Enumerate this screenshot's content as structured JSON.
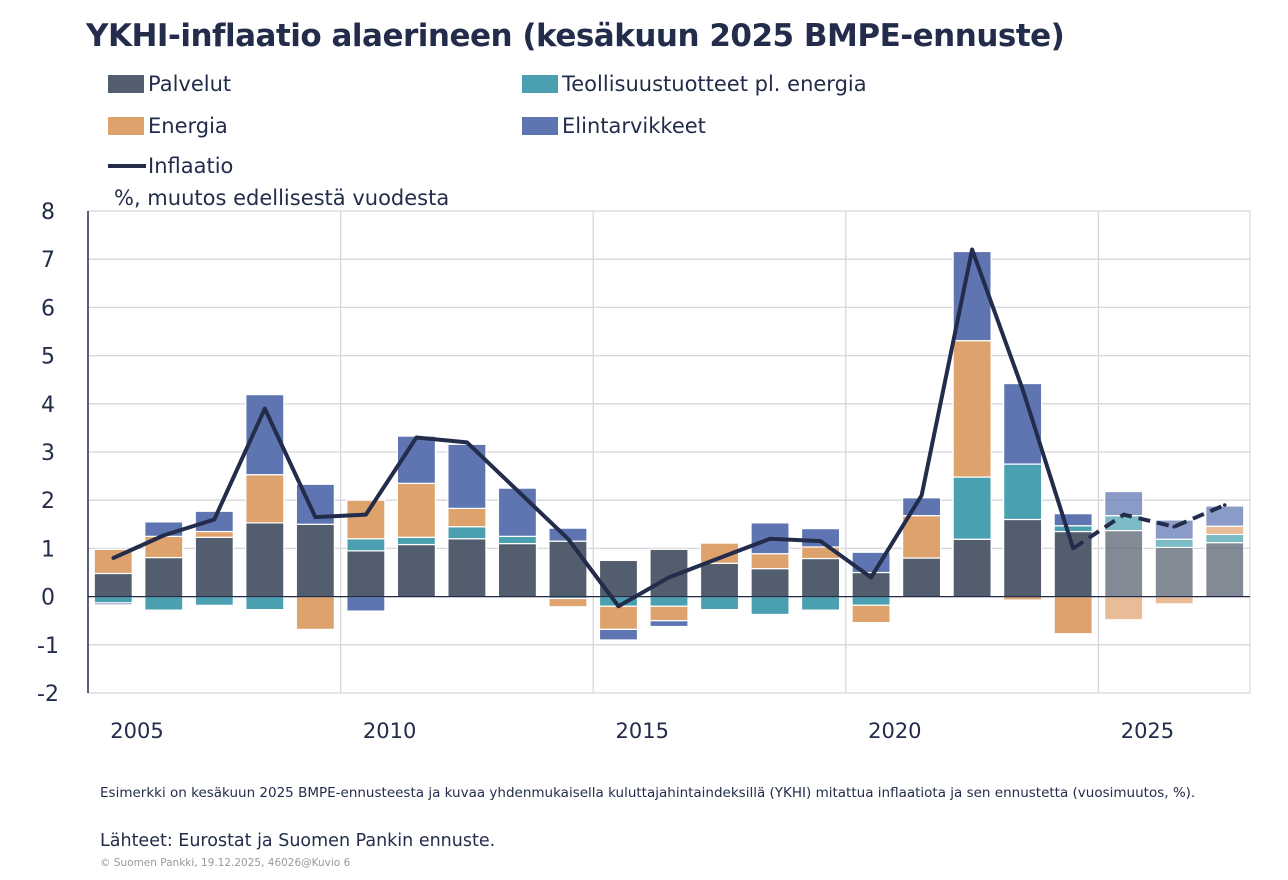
{
  "title": "YKHI-inflaatio alaerineen (kesäkuun 2025 BMPE-ennuste)",
  "unit_label": "%, muutos edellisestä vuodesta",
  "note": "Esimerkki on kesäkuun 2025 BMPE-ennusteesta ja kuvaa yhdenmukaisella kuluttajahintaindeksillä (YKHI) mitattua inflaatiota ja sen ennustetta (vuosimuutos, %).",
  "source": "Lähteet: Eurostat ja Suomen Pankin ennuste.",
  "copyright": "© Suomen Pankki, 19.12.2025, 46026@Kuvio 6",
  "chart_data": {
    "type": "bar",
    "stacked": true,
    "title": "YKHI-inflaatio alaerineen (kesäkuun 2025 BMPE-ennuste)",
    "ylabel": "%, muutos edellisestä vuodesta",
    "ylim": [
      -2,
      8
    ],
    "yticks": [
      8,
      7,
      6,
      5,
      4,
      3,
      2,
      1,
      0,
      -1,
      -2
    ],
    "xtick_labels": [
      "2005",
      "2010",
      "2015",
      "2020",
      "2025"
    ],
    "grid": true,
    "legend_position": "top",
    "forecast_from": "2025",
    "categories": [
      "2005",
      "2006",
      "2007",
      "2008",
      "2009",
      "2010",
      "2011",
      "2012",
      "2013",
      "2014",
      "2015",
      "2016",
      "2017",
      "2018",
      "2019",
      "2020",
      "2021",
      "2022",
      "2023",
      "2024",
      "2025",
      "2026",
      "2027"
    ],
    "series": [
      {
        "name": "Palvelut",
        "color": "#525d6d",
        "values": [
          0.48,
          0.81,
          1.23,
          1.53,
          1.5,
          0.95,
          1.08,
          1.2,
          1.1,
          1.15,
          0.75,
          0.98,
          0.69,
          0.58,
          0.79,
          0.5,
          0.8,
          1.19,
          1.6,
          1.35,
          1.37,
          1.02,
          1.12
        ]
      },
      {
        "name": "Teollisuustuotteet pl. energia",
        "color": "#4aa0b0",
        "values": [
          -0.13,
          -0.28,
          -0.18,
          -0.27,
          0,
          0.25,
          0.15,
          0.25,
          0.15,
          -0.04,
          -0.2,
          -0.2,
          -0.27,
          -0.37,
          -0.28,
          -0.18,
          0,
          1.29,
          1.15,
          0.12,
          0.31,
          0.17,
          0.17
        ]
      },
      {
        "name": "Energia",
        "color": "#dea26d",
        "values": [
          0.5,
          0.44,
          0.12,
          1.0,
          -0.68,
          0.8,
          1.12,
          0.38,
          -0.03,
          -0.17,
          -0.48,
          -0.3,
          0.42,
          0.31,
          0.24,
          -0.36,
          0.88,
          2.83,
          -0.07,
          -0.77,
          -0.48,
          -0.15,
          0.17
        ]
      },
      {
        "name": "Elintarvikkeet",
        "color": "#5e75b1",
        "values": [
          -0.04,
          0.3,
          0.42,
          1.66,
          0.83,
          -0.3,
          0.98,
          1.33,
          1.0,
          0.27,
          -0.22,
          -0.12,
          0,
          0.64,
          0.38,
          0.42,
          0.37,
          1.85,
          1.67,
          0.25,
          0.5,
          0.4,
          0.42
        ]
      }
    ],
    "line": {
      "name": "Inflaatio",
      "color": "#232d4b",
      "values": [
        0.8,
        1.27,
        1.6,
        3.9,
        1.65,
        1.7,
        3.3,
        3.2,
        2.2,
        1.2,
        -0.2,
        0.4,
        0.8,
        1.2,
        1.15,
        0.4,
        2.1,
        7.2,
        4.3,
        1.0,
        1.7,
        1.45,
        1.9
      ]
    }
  }
}
